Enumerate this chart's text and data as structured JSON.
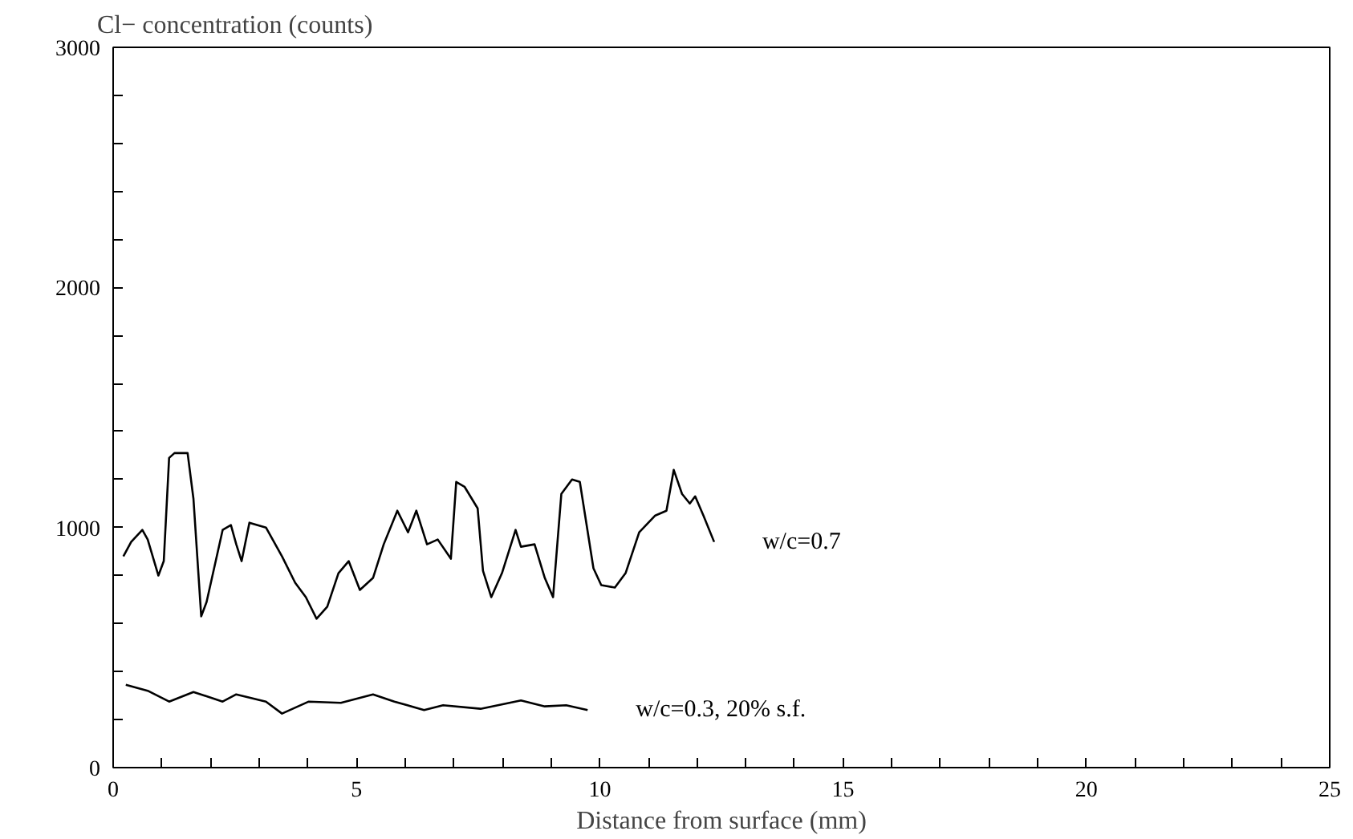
{
  "chart_data": {
    "type": "line",
    "ylabel": "Cl− concentration (counts)",
    "xlabel": "Distance from surface (mm)",
    "xlim": [
      0,
      25
    ],
    "ylim": [
      0,
      3000
    ],
    "xticks": [
      0,
      {
        "value": 1,
        "label": null
      },
      {
        "value": 2,
        "label": null
      },
      {
        "value": 3,
        "label": null
      },
      {
        "value": 4,
        "label": null
      },
      5,
      {
        "value": 6,
        "label": null
      },
      {
        "value": 7,
        "label": null
      },
      {
        "value": 8,
        "label": null
      },
      {
        "value": 9,
        "label": null
      },
      10,
      {
        "value": 11,
        "label": null
      },
      {
        "value": 12,
        "label": null
      },
      {
        "value": 13,
        "label": null
      },
      {
        "value": 14,
        "label": null
      },
      15,
      {
        "value": 16,
        "label": null
      },
      {
        "value": 17,
        "label": null
      },
      {
        "value": 18,
        "label": null
      },
      {
        "value": 19,
        "label": null
      },
      20,
      {
        "value": 21,
        "label": null
      },
      {
        "value": 22,
        "label": null
      },
      {
        "value": 23,
        "label": null
      },
      {
        "value": 24,
        "label": null
      },
      25
    ],
    "yticks": [
      0,
      {
        "value": 200,
        "label": null
      },
      {
        "value": 400,
        "label": null
      },
      {
        "value": 600,
        "label": null
      },
      {
        "value": 800,
        "label": null
      },
      1000,
      {
        "value": 1200,
        "label": null
      },
      {
        "value": 1400,
        "label": null
      },
      {
        "value": 1600,
        "label": null
      },
      {
        "value": 1800,
        "label": null
      },
      2000,
      {
        "value": 2200,
        "label": null
      },
      {
        "value": 2400,
        "label": null
      },
      {
        "value": 2600,
        "label": null
      },
      {
        "value": 2800,
        "label": null
      },
      3000
    ],
    "grid": false,
    "marker": "none",
    "line_style": "solid",
    "series": [
      {
        "name": "w/c=0.7",
        "color": "#000000",
        "x": [
          0.21,
          0.37,
          0.6,
          0.71,
          0.93,
          1.04,
          1.15,
          1.26,
          1.53,
          1.65,
          1.81,
          1.92,
          2.25,
          2.42,
          2.53,
          2.64,
          2.8,
          3.14,
          3.47,
          3.74,
          3.96,
          4.18,
          4.4,
          4.63,
          4.84,
          5.07,
          5.34,
          5.56,
          5.84,
          6.06,
          6.23,
          6.45,
          6.67,
          6.94,
          7.05,
          7.22,
          7.49,
          7.6,
          7.77,
          7.99,
          8.27,
          8.38,
          8.66,
          8.87,
          9.04,
          9.21,
          9.43,
          9.59,
          9.87,
          10.03,
          10.31,
          10.53,
          10.81,
          11.14,
          11.37,
          11.52,
          11.69,
          11.85,
          11.96,
          12.13,
          12.35
        ],
        "values": [
          880,
          940,
          990,
          950,
          800,
          860,
          1290,
          1310,
          1310,
          1120,
          630,
          690,
          990,
          1010,
          930,
          860,
          1020,
          1000,
          880,
          770,
          710,
          620,
          670,
          810,
          860,
          740,
          790,
          930,
          1070,
          980,
          1070,
          930,
          950,
          870,
          1190,
          1170,
          1080,
          820,
          710,
          810,
          990,
          920,
          930,
          790,
          710,
          1140,
          1200,
          1190,
          830,
          760,
          750,
          810,
          980,
          1050,
          1070,
          1240,
          1140,
          1100,
          1130,
          1050,
          940
        ]
      },
      {
        "name": "w/c=0.3, 20% s.f.",
        "color": "#000000",
        "x": [
          0.26,
          0.71,
          1.15,
          1.65,
          2.25,
          2.53,
          3.14,
          3.47,
          4.02,
          4.68,
          5.34,
          5.78,
          6.39,
          6.78,
          7.55,
          8.38,
          8.87,
          9.31,
          9.75
        ],
        "values": [
          345,
          320,
          275,
          315,
          275,
          305,
          275,
          225,
          275,
          270,
          305,
          275,
          240,
          260,
          245,
          280,
          255,
          260,
          240
        ]
      }
    ]
  }
}
